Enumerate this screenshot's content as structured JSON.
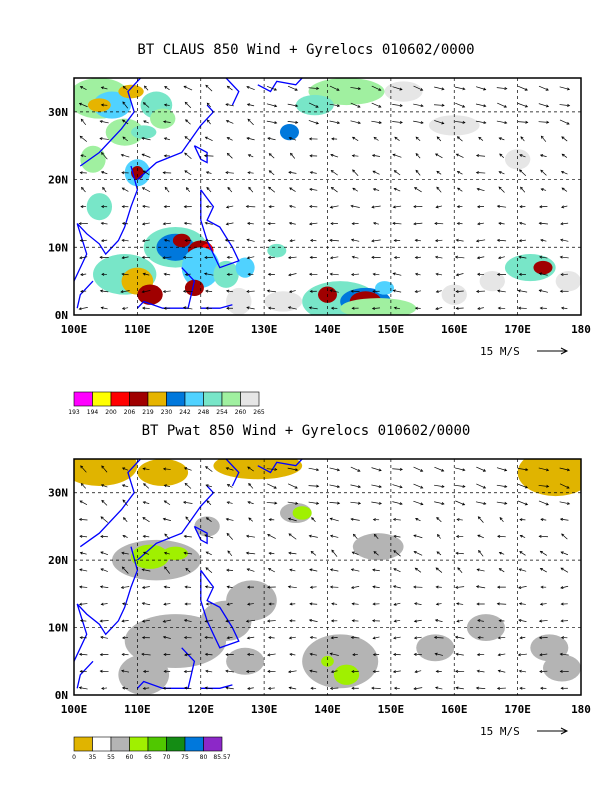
{
  "panels": [
    {
      "title": "BT CLAUS 850 Wind + Gyrelocs 010602/0000",
      "xticks": [
        "100E",
        "110E",
        "120E",
        "130E",
        "140E",
        "150E",
        "160E",
        "170E",
        "180"
      ],
      "yticks": [
        "30N",
        "20N",
        "10N",
        "0N"
      ],
      "scale_label": "15 M/S",
      "colorbar": {
        "colors": [
          "#ff00ff",
          "#ffff00",
          "#ff0000",
          "#a00000",
          "#e6b400",
          "#0078dc",
          "#50d2ff",
          "#78e6c8",
          "#a0f0a0",
          "#e6e6e6"
        ],
        "labels": [
          "193",
          "194",
          "200",
          "206",
          "219",
          "230",
          "242",
          "248",
          "254",
          "260",
          "265"
        ]
      }
    },
    {
      "title": "BT Pwat 850 Wind + Gyrelocs 010602/0000",
      "xticks": [
        "100E",
        "110E",
        "120E",
        "130E",
        "140E",
        "150E",
        "160E",
        "170E",
        "180"
      ],
      "yticks": [
        "30N",
        "20N",
        "10N",
        "0N"
      ],
      "scale_label": "15 M/S",
      "colorbar": {
        "colors": [
          "#e0b400",
          "#ffffff",
          "#b4b4b4",
          "#a0f000",
          "#50c800",
          "#148c14",
          "#0078dc",
          "#8c28c8"
        ],
        "labels": [
          "0",
          "35",
          "55",
          "60",
          "65",
          "70",
          "75",
          "80",
          "85.57"
        ]
      }
    }
  ]
}
